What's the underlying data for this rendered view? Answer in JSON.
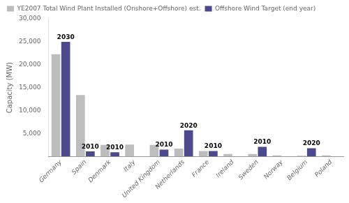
{
  "chart_data": {
    "type": "bar",
    "categories": [
      "Germany",
      "Spain",
      "Denmark",
      "Italy",
      "United Kingdom",
      "Netherlands",
      "France",
      "Ireland",
      "Sweden",
      "Norway",
      "Belgium",
      "Poland"
    ],
    "series": [
      {
        "name": "YE2007 Total Wind Plant Installed (Onshore+Offshore) est.",
        "color": "#bdbdbd",
        "values": [
          22300,
          13400,
          2500,
          2600,
          2500,
          1700,
          1200,
          550,
          550,
          250,
          150,
          250
        ]
      },
      {
        "name": "Offshore Wind Target (end year)",
        "color": "#4a4a8c",
        "values": [
          25000,
          1100,
          900,
          0,
          1500,
          5700,
          1200,
          0,
          2100,
          0,
          1800,
          0
        ]
      }
    ],
    "ylabel": "Capacity (MW)",
    "ylim": [
      0,
      30000
    ],
    "yticks": [
      {
        "value": 5000,
        "label": "5,000"
      },
      {
        "value": 10000,
        "label": "10,000"
      },
      {
        "value": 15000,
        "label": "15,000"
      },
      {
        "value": 20000,
        "label": "20,000"
      },
      {
        "value": 25000,
        "label": "25,000"
      },
      {
        "value": 30000,
        "label": "30,000"
      }
    ],
    "annotations": [
      {
        "text": "2030",
        "x": "Germany",
        "y": 25000,
        "series": "Offshore Wind Target (end year)"
      },
      {
        "text": "2010",
        "x": "Spain",
        "y": 1100,
        "series": "Offshore Wind Target (end year)"
      },
      {
        "text": "2010",
        "x": "Denmark",
        "y": 900,
        "series": "Offshore Wind Target (end year)"
      },
      {
        "text": "2010",
        "x": "United Kingdom",
        "y": 1500,
        "series": "Offshore Wind Target (end year)"
      },
      {
        "text": "2020",
        "x": "Netherlands",
        "y": 5700,
        "series": "Offshore Wind Target (end year)"
      },
      {
        "text": "2010",
        "x": "France",
        "y": 1200,
        "series": "Offshore Wind Target (end year)"
      },
      {
        "text": "2010",
        "x": "Sweden",
        "y": 2100,
        "series": "Offshore Wind Target (end year)"
      },
      {
        "text": "2020",
        "x": "Belgium",
        "y": 1800,
        "series": "Offshore Wind Target (end year)"
      }
    ],
    "grid": false,
    "legend": "upper left"
  }
}
